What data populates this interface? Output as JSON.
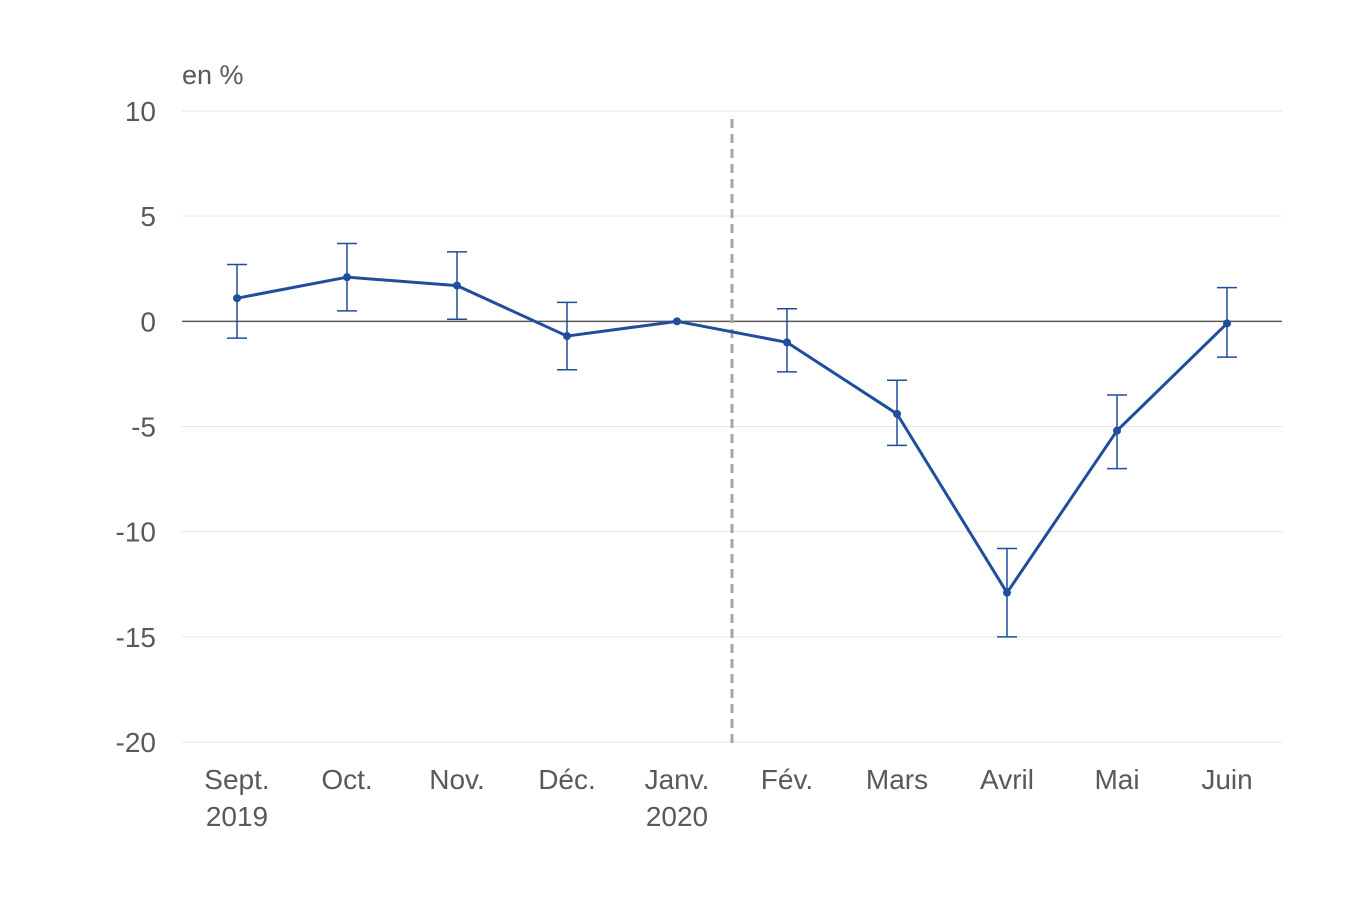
{
  "chart_data": {
    "type": "line",
    "unit_label": "en %",
    "ylim": [
      -20,
      10
    ],
    "y_ticks": [
      10,
      5,
      0,
      -5,
      -10,
      -15,
      -20
    ],
    "grid": true,
    "legend": "none",
    "categories": [
      {
        "line1": "Sept.",
        "line2": "2019"
      },
      {
        "line1": "Oct.",
        "line2": ""
      },
      {
        "line1": "Nov.",
        "line2": ""
      },
      {
        "line1": "Déc.",
        "line2": ""
      },
      {
        "line1": "Janv.",
        "line2": "2020"
      },
      {
        "line1": "Fév.",
        "line2": ""
      },
      {
        "line1": "Mars",
        "line2": ""
      },
      {
        "line1": "Avril",
        "line2": ""
      },
      {
        "line1": "Mai",
        "line2": ""
      },
      {
        "line1": "Juin",
        "line2": ""
      }
    ],
    "series": [
      {
        "values": [
          1.1,
          2.1,
          1.7,
          -0.7,
          0.0,
          -1.0,
          -4.4,
          -12.9,
          -5.2,
          -0.1
        ],
        "error_low": [
          -0.8,
          0.5,
          0.1,
          -2.3,
          null,
          -2.4,
          -5.9,
          -15.0,
          -7.0,
          -1.7
        ],
        "error_high": [
          2.7,
          3.7,
          3.3,
          0.9,
          null,
          0.6,
          -2.8,
          -10.8,
          -3.5,
          1.6
        ],
        "color": "#1f4e9c"
      }
    ],
    "divider_after_index": 4,
    "colors": {
      "series": "#1f4e9c",
      "text": "#595959",
      "grid": "#e6e6e6",
      "zero": "#595959",
      "divider": "#a6a6a6"
    }
  }
}
